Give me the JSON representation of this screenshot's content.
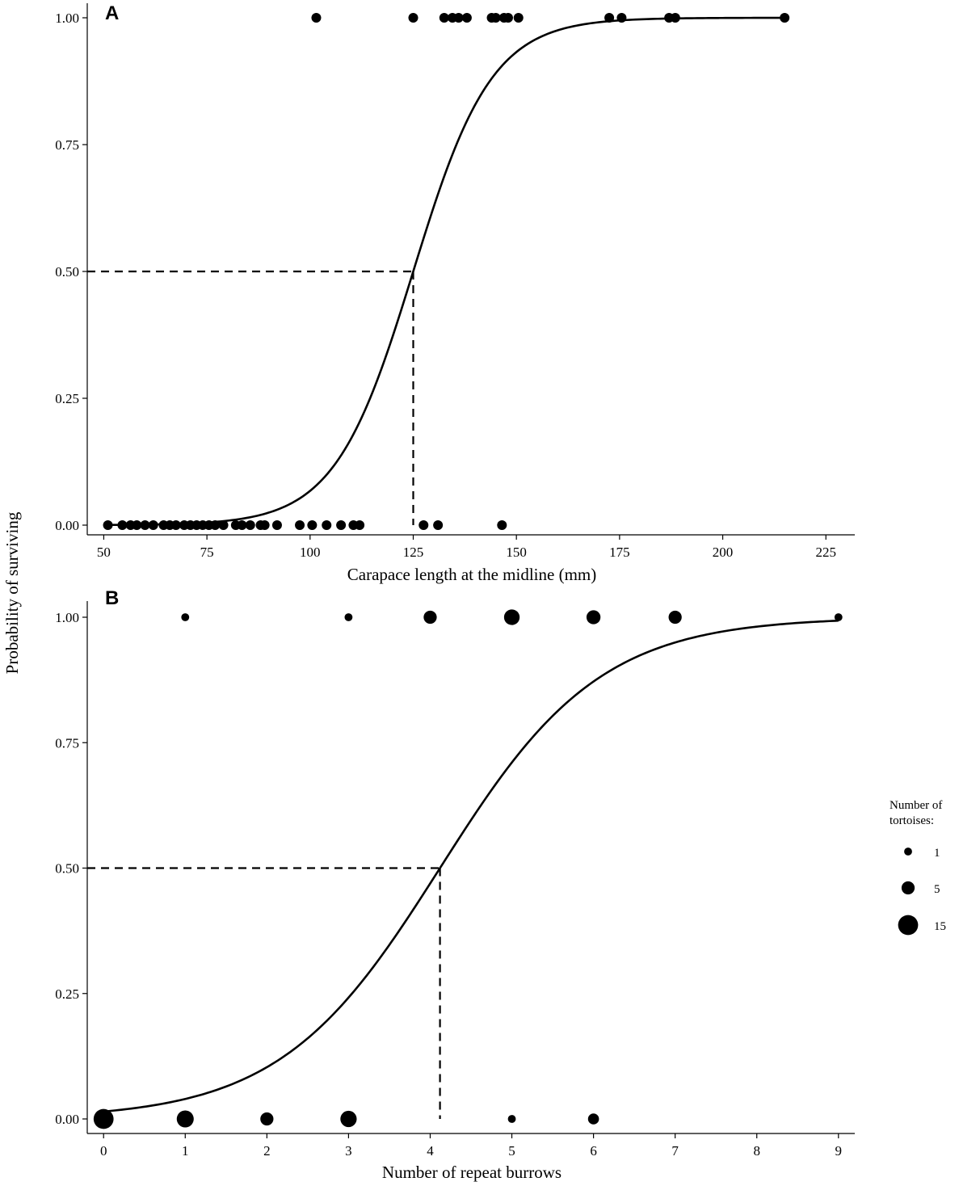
{
  "figure": {
    "shared_ylabel": "Probability of surviving",
    "legend": {
      "title_line1": "Number of",
      "title_line2": "tortoises:",
      "entries": [
        {
          "label": "1",
          "value": 1
        },
        {
          "label": "5",
          "value": 5
        },
        {
          "label": "15",
          "value": 15
        }
      ]
    }
  },
  "chart_data": [
    {
      "panel": "A",
      "type": "scatter",
      "xlabel": "Carapace length at the midline (mm)",
      "ylabel": "Probability of surviving",
      "xlim": [
        46,
        232
      ],
      "ylim": [
        -0.02,
        1.02
      ],
      "xticks": [
        50,
        75,
        100,
        125,
        150,
        175,
        200,
        225
      ],
      "xtick_labels": [
        "50",
        "75",
        "100",
        "125",
        "150",
        "175",
        "200",
        "225"
      ],
      "yticks": [
        0,
        0.25,
        0.5,
        0.75,
        1
      ],
      "ytick_labels": [
        "0.00",
        "0.25",
        "0.50",
        "0.75",
        "1.00"
      ],
      "grid": false,
      "logistic_fit": {
        "x50": 125,
        "slope": 0.105
      },
      "reference_x": 125,
      "reference_y": 0.5,
      "points": [
        [
          51,
          0
        ],
        [
          54.5,
          0
        ],
        [
          56.5,
          0
        ],
        [
          58,
          0
        ],
        [
          60,
          0
        ],
        [
          62,
          0
        ],
        [
          64.5,
          0
        ],
        [
          66,
          0
        ],
        [
          67.5,
          0
        ],
        [
          69.5,
          0
        ],
        [
          71,
          0
        ],
        [
          72.5,
          0
        ],
        [
          74,
          0
        ],
        [
          75.5,
          0
        ],
        [
          77,
          0
        ],
        [
          79,
          0
        ],
        [
          82,
          0
        ],
        [
          83.5,
          0
        ],
        [
          85.5,
          0
        ],
        [
          88,
          0
        ],
        [
          89,
          0
        ],
        [
          92,
          0
        ],
        [
          97.5,
          0
        ],
        [
          100.5,
          0
        ],
        [
          104,
          0
        ],
        [
          107.5,
          0
        ],
        [
          110.5,
          0
        ],
        [
          112,
          0
        ],
        [
          127.5,
          0
        ],
        [
          131,
          0
        ],
        [
          146.5,
          0
        ],
        [
          101.5,
          1
        ],
        [
          125,
          1
        ],
        [
          132.5,
          1
        ],
        [
          134.5,
          1
        ],
        [
          136,
          1
        ],
        [
          138,
          1
        ],
        [
          144,
          1
        ],
        [
          145,
          1
        ],
        [
          147,
          1
        ],
        [
          148,
          1
        ],
        [
          150.5,
          1
        ],
        [
          172.5,
          1
        ],
        [
          175.5,
          1
        ],
        [
          187,
          1
        ],
        [
          188.5,
          1
        ],
        [
          215,
          1
        ]
      ]
    },
    {
      "panel": "B",
      "type": "scatter",
      "xlabel": "Number of repeat burrows",
      "ylabel": "Probability of surviving",
      "xlim": [
        -0.2,
        9.2
      ],
      "ylim": [
        -0.02,
        1.02
      ],
      "xticks": [
        0,
        1,
        2,
        3,
        4,
        5,
        6,
        7,
        8,
        9
      ],
      "xtick_labels": [
        "0",
        "1",
        "2",
        "3",
        "4",
        "5",
        "6",
        "7",
        "8",
        "9"
      ],
      "yticks": [
        0,
        0.25,
        0.5,
        0.75,
        1
      ],
      "ytick_labels": [
        "0.00",
        "0.25",
        "0.50",
        "0.75",
        "1.00"
      ],
      "grid": false,
      "logistic_fit": {
        "x50": 4.12,
        "slope": 1.02
      },
      "reference_x": 4.12,
      "reference_y": 0.5,
      "points": [
        {
          "x": 0,
          "y": 0,
          "count": 15
        },
        {
          "x": 1,
          "y": 0,
          "count": 10
        },
        {
          "x": 2,
          "y": 0,
          "count": 5
        },
        {
          "x": 3,
          "y": 0,
          "count": 9
        },
        {
          "x": 5,
          "y": 0,
          "count": 1
        },
        {
          "x": 6,
          "y": 0,
          "count": 3
        },
        {
          "x": 1,
          "y": 1,
          "count": 1
        },
        {
          "x": 3,
          "y": 1,
          "count": 1
        },
        {
          "x": 4,
          "y": 1,
          "count": 5
        },
        {
          "x": 5,
          "y": 1,
          "count": 8
        },
        {
          "x": 6,
          "y": 1,
          "count": 6
        },
        {
          "x": 7,
          "y": 1,
          "count": 5
        },
        {
          "x": 9,
          "y": 1,
          "count": 1
        }
      ]
    }
  ]
}
